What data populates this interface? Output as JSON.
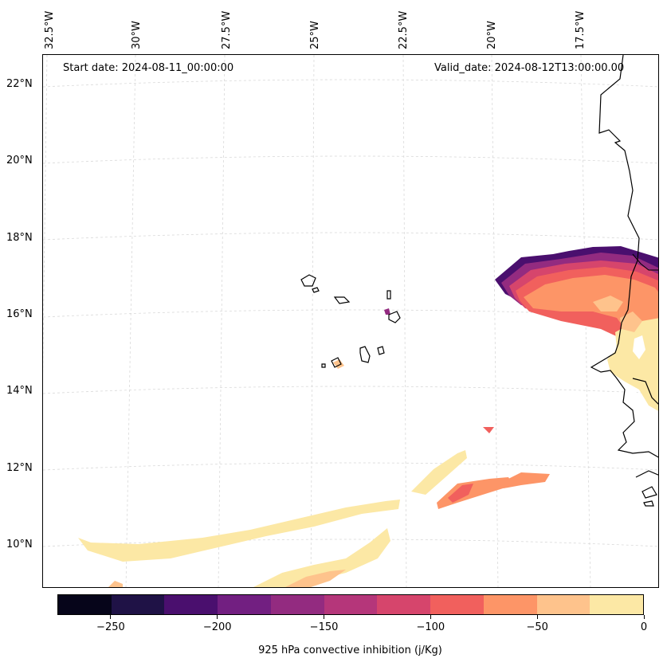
{
  "map": {
    "start_date": "Start date: 2024-08-11_00:00:00",
    "valid_date": "Valid_date: 2024-08-12T13:00:00.00",
    "longitude_labels": [
      "32.5°W",
      "30°W",
      "27.5°W",
      "25°W",
      "22.5°W",
      "20°W",
      "17.5°W"
    ],
    "latitude_labels": [
      "22°N",
      "20°N",
      "18°N",
      "16°N",
      "14°N",
      "12°N",
      "10°N"
    ],
    "field": "925 hPa convective inhibition",
    "gridline_style": "dashed light gray"
  },
  "colorbar": {
    "title": "925 hPa convective inhibition (j/Kg)",
    "range": [
      -275,
      0
    ],
    "interval": 25,
    "tick_values": [
      -250,
      -200,
      -150,
      -100,
      -50,
      0
    ],
    "tick_labels": [
      "−250",
      "−200",
      "−150",
      "−100",
      "−50",
      "0"
    ],
    "colors": [
      "#06051a",
      "#1f1246",
      "#4a0f6e",
      "#721f81",
      "#932b80",
      "#b5367a",
      "#d6456c",
      "#f1605d",
      "#fd9567",
      "#fec38c",
      "#fce8a5"
    ]
  }
}
